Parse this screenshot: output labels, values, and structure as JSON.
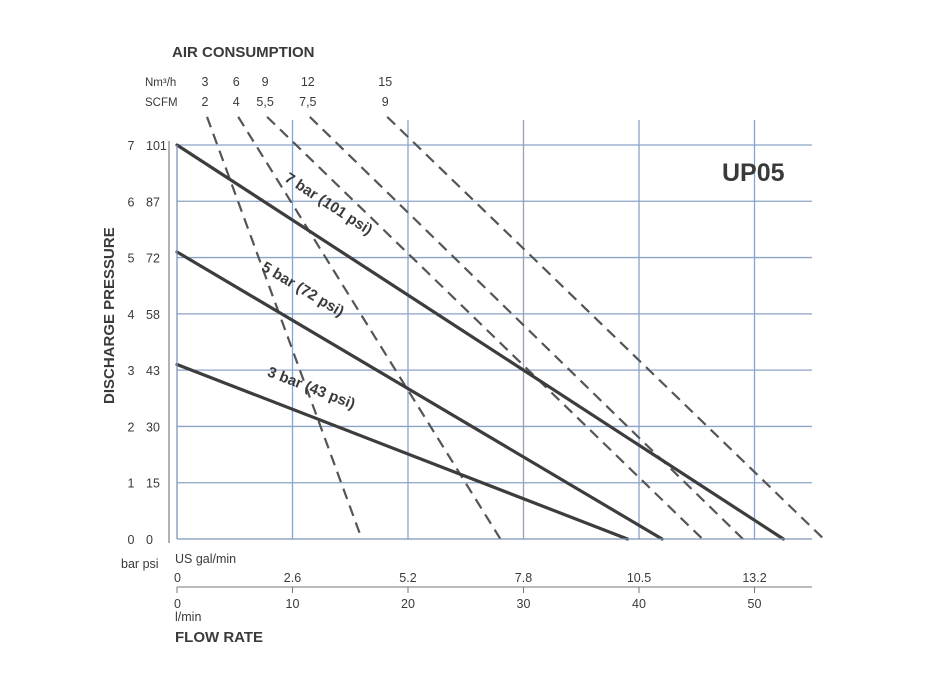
{
  "chart_data": {
    "type": "line",
    "title": "UP05",
    "top_axis_title": "AIR CONSUMPTION",
    "y_axis_title": "DISCHARGE PRESSURE",
    "x_axis_title": "FLOW RATE",
    "bar_unit": "bar",
    "psi_unit": "psi",
    "gal_unit": "US gal/min",
    "lmin_unit": "l/min",
    "nm3_unit": "Nm³/h",
    "scfm_unit": "SCFM",
    "xlim": [
      0,
      55
    ],
    "ylim": [
      0,
      7
    ],
    "bar_ticks": [
      "0",
      "1",
      "2",
      "3",
      "4",
      "5",
      "6",
      "7"
    ],
    "psi_ticks": [
      "0",
      "15",
      "30",
      "43",
      "58",
      "72",
      "87",
      "101"
    ],
    "lmin_ticks": [
      {
        "v": 0,
        "label": "0"
      },
      {
        "v": 10,
        "label": "10"
      },
      {
        "v": 20,
        "label": "20"
      },
      {
        "v": 30,
        "label": "30"
      },
      {
        "v": 40,
        "label": "40"
      },
      {
        "v": 50,
        "label": "50"
      }
    ],
    "gal_ticks": [
      {
        "v": 0,
        "label": "0"
      },
      {
        "v": 10,
        "label": "2.6"
      },
      {
        "v": 20,
        "label": "5.2"
      },
      {
        "v": 30,
        "label": "7.8"
      },
      {
        "v": 40,
        "label": "10.5"
      },
      {
        "v": 50,
        "label": "13.2"
      }
    ],
    "series": [
      {
        "name": "7 bar (101 psi)",
        "x": [
          0,
          52.5
        ],
        "y": [
          7,
          0
        ]
      },
      {
        "name": "5 bar (72 psi)",
        "x": [
          0,
          42
        ],
        "y": [
          5.1,
          0
        ]
      },
      {
        "name": "3 bar (43 psi)",
        "x": [
          0,
          39
        ],
        "y": [
          3.1,
          0
        ]
      }
    ],
    "air_consumption": [
      {
        "nm3": "3",
        "scfm": "2",
        "x": [
          2.6,
          16
        ],
        "y": [
          7.5,
          0
        ]
      },
      {
        "nm3": "6",
        "scfm": "4",
        "x": [
          5.3,
          28
        ],
        "y": [
          7.5,
          0
        ]
      },
      {
        "nm3": "9",
        "scfm": "5,5",
        "x": [
          7.8,
          45.5
        ],
        "y": [
          7.5,
          0
        ]
      },
      {
        "nm3": "12",
        "scfm": "7,5",
        "x": [
          11.5,
          49
        ],
        "y": [
          7.5,
          0
        ]
      },
      {
        "nm3": "15",
        "scfm": "9",
        "x": [
          18.2,
          56
        ],
        "y": [
          7.5,
          0
        ]
      }
    ]
  }
}
